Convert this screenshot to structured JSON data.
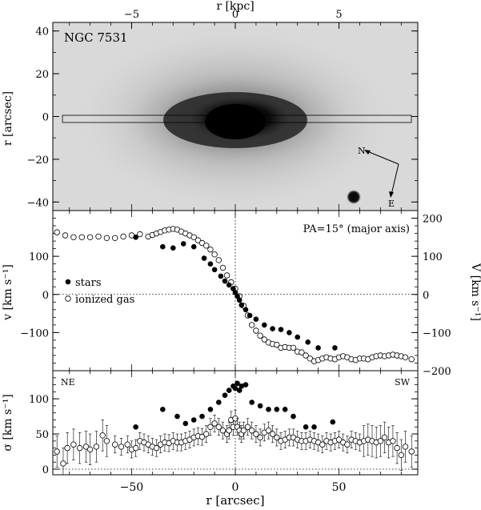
{
  "chart_data": [
    {
      "type": "image",
      "title": "NGC 7531",
      "top_axis": {
        "label": "r [kpc]",
        "ticks": [
          -5,
          0,
          5
        ]
      },
      "left_axis": {
        "label": "r [arcsec]",
        "ticks": [
          -40,
          -20,
          0,
          20,
          40
        ],
        "ylim": [
          -44,
          44
        ]
      },
      "xlim": [
        -88,
        88
      ],
      "slit_label": "",
      "compass": {
        "north": "N",
        "east": "E"
      }
    },
    {
      "type": "scatter",
      "annotation": "PA=15° (major axis)",
      "ylabel": "v [km s⁻¹]",
      "ylabel_right": "V [km s⁻¹]",
      "xlim": [
        -88,
        88
      ],
      "ylim": [
        -200,
        220
      ],
      "left_ticks": [
        -100,
        0,
        100
      ],
      "right_ticks": [
        -200,
        -100,
        0,
        100,
        200
      ],
      "legend": {
        "position": "left",
        "stars_label": "stars",
        "gas_label": "ionized gas"
      },
      "series": [
        {
          "name": "stars",
          "marker": "filled",
          "points": [
            [
              -48,
              150
            ],
            [
              -35,
              125
            ],
            [
              -30,
              122
            ],
            [
              -25,
              133
            ],
            [
              -20,
              125
            ],
            [
              -15,
              95
            ],
            [
              -12,
              80
            ],
            [
              -10,
              65
            ],
            [
              -7,
              48
            ],
            [
              -5,
              35
            ],
            [
              -3,
              25
            ],
            [
              -1,
              15
            ],
            [
              0,
              5
            ],
            [
              1,
              -5
            ],
            [
              2,
              -15
            ],
            [
              3,
              -28
            ],
            [
              5,
              -40
            ],
            [
              7,
              -55
            ],
            [
              10,
              -65
            ],
            [
              14,
              -80
            ],
            [
              18,
              -90
            ],
            [
              22,
              -92
            ],
            [
              26,
              -100
            ],
            [
              30,
              -112
            ],
            [
              35,
              -125
            ],
            [
              40,
              -140
            ],
            [
              48,
              -140
            ]
          ]
        },
        {
          "name": "ionized gas",
          "marker": "open",
          "points": [
            [
              -86,
              163
            ],
            [
              -82,
              155
            ],
            [
              -78,
              150
            ],
            [
              -74,
              150
            ],
            [
              -70,
              150
            ],
            [
              -66,
              152
            ],
            [
              -62,
              148
            ],
            [
              -58,
              148
            ],
            [
              -54,
              152
            ],
            [
              -50,
              155
            ],
            [
              -46,
              158
            ],
            [
              -42,
              152
            ],
            [
              -40,
              156
            ],
            [
              -38,
              160
            ],
            [
              -36,
              164
            ],
            [
              -34,
              168
            ],
            [
              -32,
              170
            ],
            [
              -30,
              172
            ],
            [
              -28,
              170
            ],
            [
              -26,
              165
            ],
            [
              -24,
              160
            ],
            [
              -22,
              155
            ],
            [
              -20,
              150
            ],
            [
              -18,
              142
            ],
            [
              -16,
              135
            ],
            [
              -14,
              128
            ],
            [
              -12,
              118
            ],
            [
              -10,
              105
            ],
            [
              -8,
              90
            ],
            [
              -6,
              70
            ],
            [
              -4,
              50
            ],
            [
              -2,
              32
            ],
            [
              0,
              15
            ],
            [
              2,
              -5
            ],
            [
              4,
              -30
            ],
            [
              6,
              -55
            ],
            [
              8,
              -80
            ],
            [
              10,
              -95
            ],
            [
              12,
              -108
            ],
            [
              14,
              -118
            ],
            [
              16,
              -126
            ],
            [
              18,
              -130
            ],
            [
              20,
              -132
            ],
            [
              22,
              -140
            ],
            [
              24,
              -138
            ],
            [
              26,
              -140
            ],
            [
              28,
              -140
            ],
            [
              30,
              -150
            ],
            [
              32,
              -152
            ],
            [
              34,
              -160
            ],
            [
              36,
              -168
            ],
            [
              38,
              -175
            ],
            [
              40,
              -172
            ],
            [
              42,
              -168
            ],
            [
              44,
              -165
            ],
            [
              46,
              -168
            ],
            [
              48,
              -170
            ],
            [
              50,
              -165
            ],
            [
              52,
              -162
            ],
            [
              54,
              -165
            ],
            [
              56,
              -170
            ],
            [
              58,
              -172
            ],
            [
              60,
              -168
            ],
            [
              62,
              -168
            ],
            [
              64,
              -170
            ],
            [
              66,
              -165
            ],
            [
              68,
              -162
            ],
            [
              70,
              -160
            ],
            [
              72,
              -162
            ],
            [
              74,
              -160
            ],
            [
              76,
              -158
            ],
            [
              78,
              -160
            ],
            [
              80,
              -162
            ],
            [
              82,
              -165
            ],
            [
              85,
              -170
            ]
          ]
        }
      ]
    },
    {
      "type": "scatter",
      "ylabel": "σ [km s⁻¹]",
      "xlabel": "r [arcsec]",
      "xlim": [
        -88,
        88
      ],
      "ylim": [
        -8,
        140
      ],
      "yticks": [
        0,
        50,
        100
      ],
      "xticks": [
        -50,
        0,
        50
      ],
      "corner_left": "NE",
      "corner_right": "SW",
      "series": [
        {
          "name": "stars",
          "marker": "filled",
          "points": [
            [
              -48,
              60
            ],
            [
              -35,
              85
            ],
            [
              -28,
              75
            ],
            [
              -24,
              65
            ],
            [
              -20,
              70
            ],
            [
              -16,
              75
            ],
            [
              -12,
              85
            ],
            [
              -8,
              95
            ],
            [
              -5,
              105
            ],
            [
              -3,
              112
            ],
            [
              -1,
              118
            ],
            [
              0,
              115
            ],
            [
              1,
              122
            ],
            [
              2,
              112
            ],
            [
              3,
              118
            ],
            [
              5,
              120
            ],
            [
              8,
              95
            ],
            [
              12,
              90
            ],
            [
              16,
              85
            ],
            [
              20,
              85
            ],
            [
              24,
              85
            ],
            [
              28,
              75
            ],
            [
              34,
              60
            ],
            [
              38,
              60
            ],
            [
              47,
              67
            ]
          ]
        },
        {
          "name": "ionized gas",
          "marker": "open",
          "err": 12,
          "points": [
            [
              -86,
              25
            ],
            [
              -83,
              8
            ],
            [
              -81,
              30
            ],
            [
              -78,
              35
            ],
            [
              -75,
              30
            ],
            [
              -72,
              32
            ],
            [
              -70,
              28
            ],
            [
              -67,
              32
            ],
            [
              -64,
              48
            ],
            [
              -62,
              40
            ],
            [
              -58,
              35
            ],
            [
              -55,
              32
            ],
            [
              -52,
              35
            ],
            [
              -50,
              28
            ],
            [
              -48,
              30
            ],
            [
              -46,
              40
            ],
            [
              -44,
              38
            ],
            [
              -42,
              35
            ],
            [
              -40,
              32
            ],
            [
              -38,
              30
            ],
            [
              -36,
              35
            ],
            [
              -34,
              38
            ],
            [
              -32,
              37
            ],
            [
              -30,
              40
            ],
            [
              -28,
              38
            ],
            [
              -26,
              38
            ],
            [
              -24,
              40
            ],
            [
              -22,
              42
            ],
            [
              -20,
              45
            ],
            [
              -18,
              47
            ],
            [
              -16,
              46
            ],
            [
              -14,
              50
            ],
            [
              -12,
              60
            ],
            [
              -10,
              65
            ],
            [
              -8,
              60
            ],
            [
              -6,
              55
            ],
            [
              -4,
              50
            ],
            [
              -3,
              55
            ],
            [
              -2,
              70
            ],
            [
              -1,
              60
            ],
            [
              0,
              72
            ],
            [
              1,
              60
            ],
            [
              2,
              55
            ],
            [
              3,
              50
            ],
            [
              4,
              55
            ],
            [
              6,
              60
            ],
            [
              8,
              55
            ],
            [
              10,
              50
            ],
            [
              12,
              45
            ],
            [
              14,
              52
            ],
            [
              16,
              55
            ],
            [
              18,
              50
            ],
            [
              20,
              45
            ],
            [
              22,
              40
            ],
            [
              24,
              42
            ],
            [
              26,
              45
            ],
            [
              28,
              45
            ],
            [
              30,
              42
            ],
            [
              32,
              40
            ],
            [
              34,
              40
            ],
            [
              36,
              42
            ],
            [
              38,
              40
            ],
            [
              40,
              38
            ],
            [
              42,
              35
            ],
            [
              44,
              40
            ],
            [
              46,
              38
            ],
            [
              48,
              40
            ],
            [
              50,
              42
            ],
            [
              52,
              38
            ],
            [
              54,
              35
            ],
            [
              56,
              42
            ],
            [
              58,
              40
            ],
            [
              60,
              38
            ],
            [
              62,
              40
            ],
            [
              64,
              42
            ],
            [
              66,
              40
            ],
            [
              68,
              38
            ],
            [
              70,
              40
            ],
            [
              72,
              45
            ],
            [
              74,
              38
            ],
            [
              76,
              40
            ],
            [
              78,
              30
            ],
            [
              80,
              20
            ],
            [
              82,
              32
            ],
            [
              85,
              25
            ]
          ]
        }
      ]
    }
  ]
}
